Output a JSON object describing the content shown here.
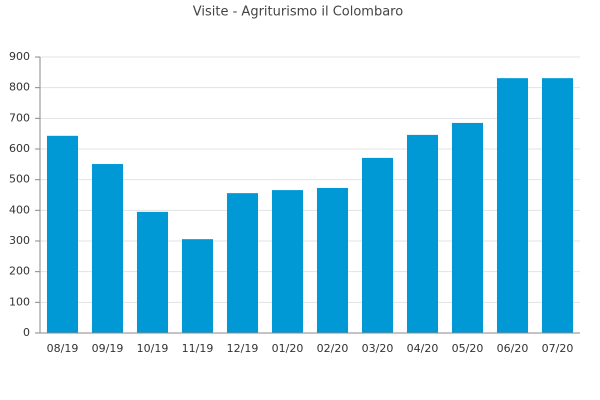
{
  "chart_data": {
    "type": "bar",
    "title": "Visite - Agriturismo il Colombaro",
    "categories": [
      "08/19",
      "09/19",
      "10/19",
      "11/19",
      "12/19",
      "01/20",
      "02/20",
      "03/20",
      "04/20",
      "05/20",
      "06/20",
      "07/20"
    ],
    "values": [
      643,
      551,
      395,
      306,
      456,
      466,
      473,
      571,
      646,
      685,
      831,
      831
    ],
    "color": "#0099d6",
    "ylim": [
      0,
      900
    ],
    "yticks": [
      0,
      100,
      200,
      300,
      400,
      500,
      600,
      700,
      800,
      900
    ],
    "grid": true
  }
}
